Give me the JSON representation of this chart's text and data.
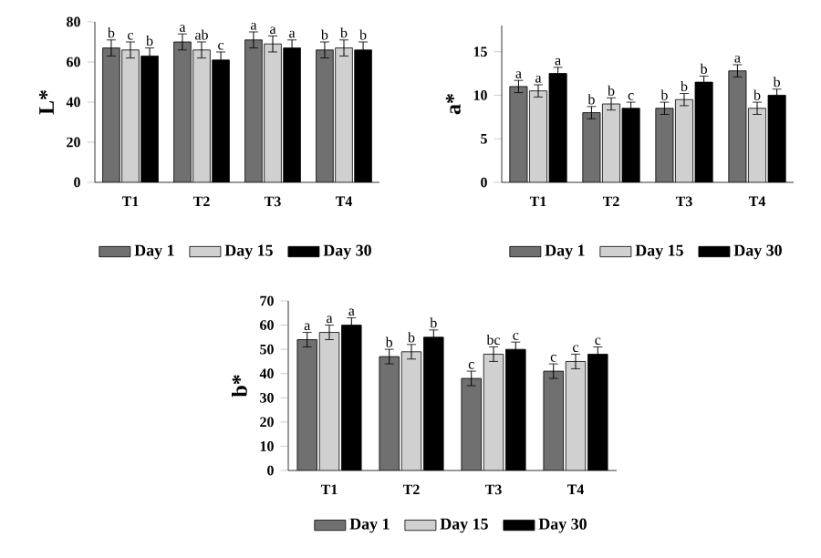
{
  "chart_data": [
    {
      "type": "bar",
      "ylabel": "L*",
      "categories": [
        "T1",
        "T2",
        "T3",
        "T4"
      ],
      "ylim": [
        0,
        80
      ],
      "yticks": [
        0,
        20,
        40,
        60,
        80
      ],
      "legend": "bottom",
      "series": [
        {
          "name": "Day 1",
          "color": "#707070",
          "values": [
            67,
            70,
            71,
            66
          ],
          "errors": [
            4,
            4,
            4,
            4
          ]
        },
        {
          "name": "Day 15",
          "color": "#d0d0d0",
          "values": [
            66,
            66,
            69,
            67
          ],
          "errors": [
            4,
            4,
            4,
            4
          ]
        },
        {
          "name": "Day 30",
          "color": "#000000",
          "values": [
            63,
            61,
            67,
            66
          ],
          "errors": [
            4,
            4,
            4,
            4
          ]
        }
      ],
      "annotations": [
        "b",
        "c",
        "b",
        "a",
        "ab",
        "c",
        "a",
        "a",
        "a",
        "b",
        "b",
        "b"
      ]
    },
    {
      "type": "bar",
      "ylabel": "a*",
      "categories": [
        "T1",
        "T2",
        "T3",
        "T4"
      ],
      "ylim": [
        0,
        18
      ],
      "yticks": [
        0,
        5,
        10,
        15
      ],
      "legend": "bottom",
      "series": [
        {
          "name": "Day 1",
          "color": "#707070",
          "values": [
            11,
            8,
            8.5,
            12.8
          ],
          "errors": [
            0.7,
            0.7,
            0.7,
            0.7
          ]
        },
        {
          "name": "Day 15",
          "color": "#d0d0d0",
          "values": [
            10.5,
            9,
            9.5,
            8.5
          ],
          "errors": [
            0.7,
            0.7,
            0.7,
            0.7
          ]
        },
        {
          "name": "Day 30",
          "color": "#000000",
          "values": [
            12.5,
            8.5,
            11.5,
            10
          ],
          "errors": [
            0.7,
            0.7,
            0.7,
            0.7
          ]
        }
      ],
      "annotations": [
        "a",
        "a",
        "a",
        "b",
        "b",
        "c",
        "b",
        "b",
        "b",
        "a",
        "b",
        "b"
      ]
    },
    {
      "type": "bar",
      "ylabel": "b*",
      "categories": [
        "T1",
        "T2",
        "T3",
        "T4"
      ],
      "ylim": [
        0,
        70
      ],
      "yticks": [
        0,
        10,
        20,
        30,
        40,
        50,
        60,
        70
      ],
      "legend": "bottom",
      "series": [
        {
          "name": "Day 1",
          "color": "#707070",
          "values": [
            54,
            47,
            38,
            41
          ],
          "errors": [
            3,
            3,
            3,
            3
          ]
        },
        {
          "name": "Day 15",
          "color": "#d0d0d0",
          "values": [
            57,
            49,
            48,
            45
          ],
          "errors": [
            3,
            3,
            3,
            3
          ]
        },
        {
          "name": "Day 30",
          "color": "#000000",
          "values": [
            60,
            55,
            50,
            48
          ],
          "errors": [
            3,
            3,
            3,
            3
          ]
        }
      ],
      "annotations": [
        "a",
        "a",
        "a",
        "b",
        "b",
        "b",
        "c",
        "bc",
        "c",
        "c",
        "c",
        "c"
      ]
    }
  ]
}
